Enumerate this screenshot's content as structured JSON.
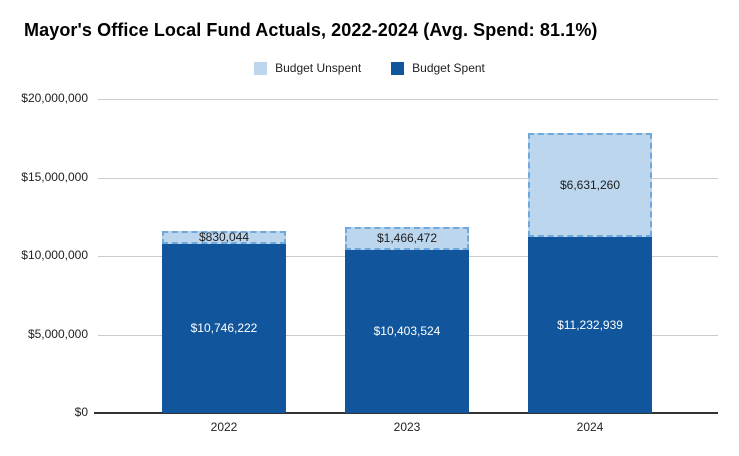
{
  "title": "Mayor's Office Local Fund Actuals, 2022-2024 (Avg. Spend: 81.1%)",
  "legend": {
    "items": [
      {
        "label": "Budget Unspent",
        "color": "#bcd6ee"
      },
      {
        "label": "Budget Spent",
        "color": "#11569d"
      }
    ]
  },
  "chart_data": {
    "type": "bar",
    "stacked": true,
    "title": "Mayor's Office Local Fund Actuals, 2022-2024 (Avg. Spend: 81.1%)",
    "categories": [
      "2022",
      "2023",
      "2024"
    ],
    "series": [
      {
        "name": "Budget Spent",
        "color": "#11569d",
        "label_color": "#ffffff",
        "values": [
          10746222,
          10403524,
          11232939
        ],
        "labels": [
          "$10,746,222",
          "$10,403,524",
          "$11,232,939"
        ]
      },
      {
        "name": "Budget Unspent",
        "color": "#bcd6ee",
        "border_color": "#6fa8dc",
        "label_color": "#1d1d1d",
        "values": [
          830044,
          1466472,
          6631260
        ],
        "labels": [
          "$830,044",
          "$1,466,472",
          "$6,631,260"
        ]
      }
    ],
    "ylim": [
      0,
      20000000
    ],
    "yticks": [
      {
        "value": 0,
        "label": "$0"
      },
      {
        "value": 5000000,
        "label": "$5,000,000"
      },
      {
        "value": 10000000,
        "label": "$10,000,000"
      },
      {
        "value": 15000000,
        "label": "$15,000,000"
      },
      {
        "value": 20000000,
        "label": "$20,000,000"
      }
    ],
    "grid": true,
    "grid_color": "#cccccc",
    "axis_color": "#333333",
    "text_color": "#222222",
    "legend_position": "top"
  }
}
